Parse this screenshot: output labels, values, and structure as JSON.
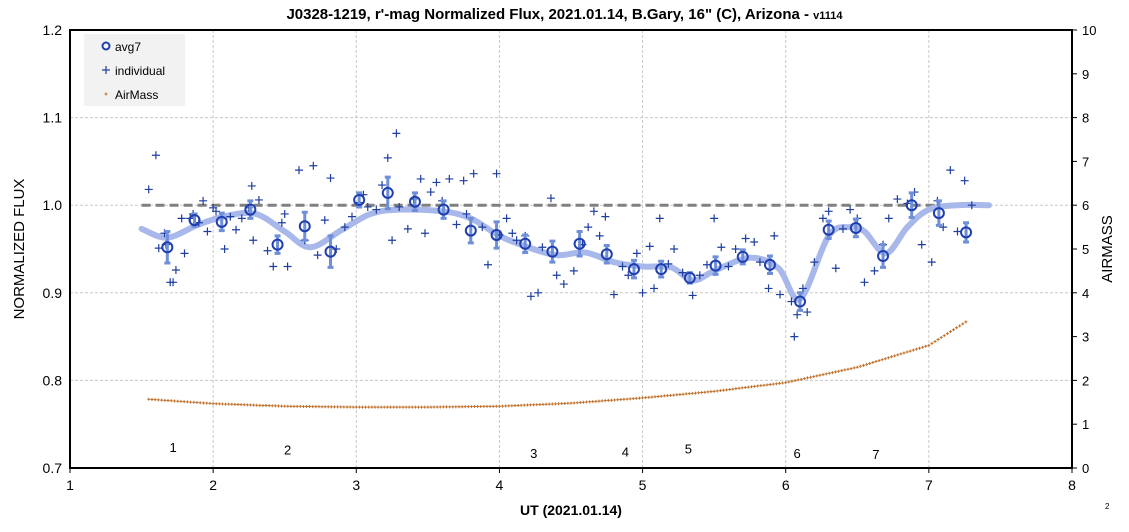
{
  "chart_data": {
    "type": "scatter",
    "title": "J0328-1219, r'-mag Normalized Flux, 2021.01.14, B.Gary, 16\" (C), Arizona - ",
    "title_suffix": "v1114",
    "xlabel": "UT (2021.01.14)",
    "ylabel": "NORMALIZED FLUX",
    "y2label": "AIRMASS",
    "xlim": [
      1,
      8
    ],
    "ylim": [
      0.7,
      1.2
    ],
    "y2lim": [
      0,
      10
    ],
    "xticks": [
      "1",
      "2",
      "3",
      "4",
      "5",
      "6",
      "7",
      "8"
    ],
    "yticks": [
      "0.7",
      "0.8",
      "0.9",
      "1.0",
      "1.1",
      "1.2"
    ],
    "y2ticks": [
      "0",
      "1",
      "2",
      "3",
      "4",
      "5",
      "6",
      "7",
      "8",
      "9",
      "10"
    ],
    "grid": true,
    "legend": {
      "placement": "top-left",
      "entries": [
        "avg7",
        "individual",
        "AirMass"
      ]
    },
    "corner_note": "2",
    "colors": {
      "avg7": "#1f3fb0",
      "individual": "#1f3f9f",
      "airmass": "#c0702a",
      "smooth": "#a8b8ea",
      "reference": "#808080"
    },
    "reference_line": {
      "y": 1.0,
      "x": [
        1.5,
        7.42
      ]
    },
    "annotations": [
      {
        "text": "1",
        "x": 1.72,
        "y": 0.724
      },
      {
        "text": "2",
        "x": 2.52,
        "y": 0.721
      },
      {
        "text": "3",
        "x": 4.24,
        "y": 0.717
      },
      {
        "text": "4",
        "x": 4.88,
        "y": 0.719
      },
      {
        "text": "5",
        "x": 5.32,
        "y": 0.722
      },
      {
        "text": "6",
        "x": 6.08,
        "y": 0.717
      },
      {
        "text": "7",
        "x": 6.63,
        "y": 0.716
      }
    ],
    "avg7": [
      [
        1.68,
        0.952,
        0.018
      ],
      [
        1.87,
        0.983,
        0.007
      ],
      [
        2.06,
        0.981,
        0.01
      ],
      [
        2.26,
        0.995,
        0.01
      ],
      [
        2.45,
        0.955,
        0.01
      ],
      [
        2.64,
        0.976,
        0.016
      ],
      [
        2.82,
        0.947,
        0.018
      ],
      [
        3.02,
        1.006,
        0.008
      ],
      [
        3.22,
        1.014,
        0.018
      ],
      [
        3.41,
        1.004,
        0.01
      ],
      [
        3.61,
        0.995,
        0.01
      ],
      [
        3.8,
        0.971,
        0.014
      ],
      [
        3.98,
        0.966,
        0.015
      ],
      [
        4.18,
        0.956,
        0.01
      ],
      [
        4.37,
        0.947,
        0.012
      ],
      [
        4.56,
        0.956,
        0.014
      ],
      [
        4.75,
        0.944,
        0.01
      ],
      [
        4.94,
        0.927,
        0.01
      ],
      [
        5.13,
        0.927,
        0.009
      ],
      [
        5.33,
        0.917,
        0.006
      ],
      [
        5.51,
        0.931,
        0.01
      ],
      [
        5.7,
        0.941,
        0.008
      ],
      [
        5.89,
        0.932,
        0.01
      ],
      [
        6.1,
        0.89,
        0.01
      ],
      [
        6.3,
        0.972,
        0.01
      ],
      [
        6.49,
        0.974,
        0.01
      ],
      [
        6.68,
        0.942,
        0.013
      ],
      [
        6.88,
        1.0,
        0.014
      ],
      [
        7.07,
        0.991,
        0.014
      ],
      [
        7.26,
        0.969,
        0.011
      ]
    ],
    "individual": [
      [
        1.55,
        1.018
      ],
      [
        1.6,
        1.057
      ],
      [
        1.62,
        0.951
      ],
      [
        1.66,
        0.968
      ],
      [
        1.67,
        0.955
      ],
      [
        1.7,
        0.912
      ],
      [
        1.72,
        0.912
      ],
      [
        1.74,
        0.926
      ],
      [
        1.78,
        0.985
      ],
      [
        1.8,
        0.945
      ],
      [
        1.84,
        0.985
      ],
      [
        1.86,
        0.99
      ],
      [
        1.9,
        0.98
      ],
      [
        1.93,
        1.005
      ],
      [
        1.96,
        0.97
      ],
      [
        2.0,
        0.997
      ],
      [
        2.02,
        0.993
      ],
      [
        2.08,
        0.95
      ],
      [
        2.12,
        0.987
      ],
      [
        2.16,
        0.972
      ],
      [
        2.2,
        0.985
      ],
      [
        2.25,
        0.997
      ],
      [
        2.27,
        1.022
      ],
      [
        2.28,
        0.96
      ],
      [
        2.32,
        1.006
      ],
      [
        2.38,
        0.948
      ],
      [
        2.42,
        0.93
      ],
      [
        2.48,
        0.98
      ],
      [
        2.5,
        0.99
      ],
      [
        2.52,
        0.93
      ],
      [
        2.6,
        1.04
      ],
      [
        2.64,
        0.96
      ],
      [
        2.7,
        1.045
      ],
      [
        2.73,
        0.943
      ],
      [
        2.78,
        0.983
      ],
      [
        2.82,
        1.031
      ],
      [
        2.86,
        0.95
      ],
      [
        2.92,
        0.975
      ],
      [
        2.97,
        0.987
      ],
      [
        3.02,
        1.003
      ],
      [
        3.05,
        1.012
      ],
      [
        3.08,
        0.998
      ],
      [
        3.14,
        0.995
      ],
      [
        3.18,
        1.023
      ],
      [
        3.22,
        1.054
      ],
      [
        3.25,
        0.96
      ],
      [
        3.28,
        1.082
      ],
      [
        3.3,
        0.998
      ],
      [
        3.36,
        0.973
      ],
      [
        3.4,
        1.007
      ],
      [
        3.45,
        1.03
      ],
      [
        3.48,
        0.968
      ],
      [
        3.52,
        1.015
      ],
      [
        3.56,
        1.026
      ],
      [
        3.6,
        1.005
      ],
      [
        3.65,
        1.03
      ],
      [
        3.7,
        0.978
      ],
      [
        3.75,
        1.028
      ],
      [
        3.77,
        0.99
      ],
      [
        3.82,
        1.036
      ],
      [
        3.88,
        0.975
      ],
      [
        3.92,
        0.932
      ],
      [
        3.98,
        1.036
      ],
      [
        4.0,
        0.966
      ],
      [
        4.05,
        0.985
      ],
      [
        4.09,
        0.968
      ],
      [
        4.12,
        0.96
      ],
      [
        4.18,
        0.965
      ],
      [
        4.22,
        0.896
      ],
      [
        4.27,
        0.9
      ],
      [
        4.3,
        0.952
      ],
      [
        4.36,
        1.008
      ],
      [
        4.4,
        0.92
      ],
      [
        4.45,
        0.91
      ],
      [
        4.52,
        0.925
      ],
      [
        4.58,
        0.955
      ],
      [
        4.62,
        0.975
      ],
      [
        4.66,
        0.993
      ],
      [
        4.7,
        0.965
      ],
      [
        4.74,
        0.987
      ],
      [
        4.8,
        0.898
      ],
      [
        4.86,
        0.93
      ],
      [
        4.9,
        0.92
      ],
      [
        4.96,
        0.945
      ],
      [
        5.0,
        0.9
      ],
      [
        5.05,
        0.953
      ],
      [
        5.08,
        0.905
      ],
      [
        5.12,
        0.985
      ],
      [
        5.18,
        0.933
      ],
      [
        5.22,
        0.95
      ],
      [
        5.28,
        0.923
      ],
      [
        5.35,
        0.897
      ],
      [
        5.4,
        0.92
      ],
      [
        5.45,
        0.932
      ],
      [
        5.5,
        0.985
      ],
      [
        5.55,
        0.952
      ],
      [
        5.6,
        0.93
      ],
      [
        5.65,
        0.95
      ],
      [
        5.72,
        0.962
      ],
      [
        5.78,
        0.958
      ],
      [
        5.82,
        0.935
      ],
      [
        5.88,
        0.905
      ],
      [
        5.92,
        0.965
      ],
      [
        5.96,
        0.898
      ],
      [
        6.04,
        0.89
      ],
      [
        6.06,
        0.85
      ],
      [
        6.08,
        0.875
      ],
      [
        6.12,
        0.905
      ],
      [
        6.15,
        0.878
      ],
      [
        6.2,
        0.935
      ],
      [
        6.26,
        0.985
      ],
      [
        6.3,
        0.993
      ],
      [
        6.35,
        0.928
      ],
      [
        6.4,
        0.973
      ],
      [
        6.45,
        0.995
      ],
      [
        6.5,
        0.985
      ],
      [
        6.55,
        0.912
      ],
      [
        6.62,
        0.925
      ],
      [
        6.68,
        0.955
      ],
      [
        6.72,
        0.985
      ],
      [
        6.78,
        1.007
      ],
      [
        6.85,
        1.002
      ],
      [
        6.9,
        1.015
      ],
      [
        6.95,
        0.955
      ],
      [
        7.02,
        0.935
      ],
      [
        7.06,
        1.005
      ],
      [
        7.1,
        0.975
      ],
      [
        7.15,
        1.04
      ],
      [
        7.2,
        0.97
      ],
      [
        7.25,
        1.028
      ],
      [
        7.3,
        1.0
      ]
    ],
    "smooth": [
      [
        1.5,
        0.973
      ],
      [
        1.68,
        0.963
      ],
      [
        1.9,
        0.978
      ],
      [
        2.1,
        0.988
      ],
      [
        2.3,
        0.99
      ],
      [
        2.5,
        0.97
      ],
      [
        2.68,
        0.952
      ],
      [
        2.9,
        0.972
      ],
      [
        3.1,
        0.99
      ],
      [
        3.3,
        0.995
      ],
      [
        3.6,
        0.993
      ],
      [
        3.8,
        0.985
      ],
      [
        4.0,
        0.965
      ],
      [
        4.2,
        0.952
      ],
      [
        4.4,
        0.943
      ],
      [
        4.6,
        0.946
      ],
      [
        4.8,
        0.935
      ],
      [
        5.0,
        0.93
      ],
      [
        5.2,
        0.929
      ],
      [
        5.35,
        0.914
      ],
      [
        5.5,
        0.925
      ],
      [
        5.75,
        0.94
      ],
      [
        5.95,
        0.928
      ],
      [
        6.1,
        0.893
      ],
      [
        6.3,
        0.965
      ],
      [
        6.45,
        0.975
      ],
      [
        6.55,
        0.97
      ],
      [
        6.7,
        0.945
      ],
      [
        6.85,
        0.975
      ],
      [
        7.0,
        0.995
      ],
      [
        7.2,
        1.0
      ],
      [
        7.42,
        1.0
      ]
    ],
    "airmass": [
      [
        1.55,
        1.57
      ],
      [
        2.0,
        1.47
      ],
      [
        2.5,
        1.41
      ],
      [
        3.0,
        1.39
      ],
      [
        3.5,
        1.39
      ],
      [
        4.0,
        1.41
      ],
      [
        4.5,
        1.48
      ],
      [
        5.0,
        1.6
      ],
      [
        5.5,
        1.75
      ],
      [
        6.0,
        1.95
      ],
      [
        6.5,
        2.3
      ],
      [
        7.0,
        2.8
      ],
      [
        7.28,
        3.38
      ]
    ]
  }
}
